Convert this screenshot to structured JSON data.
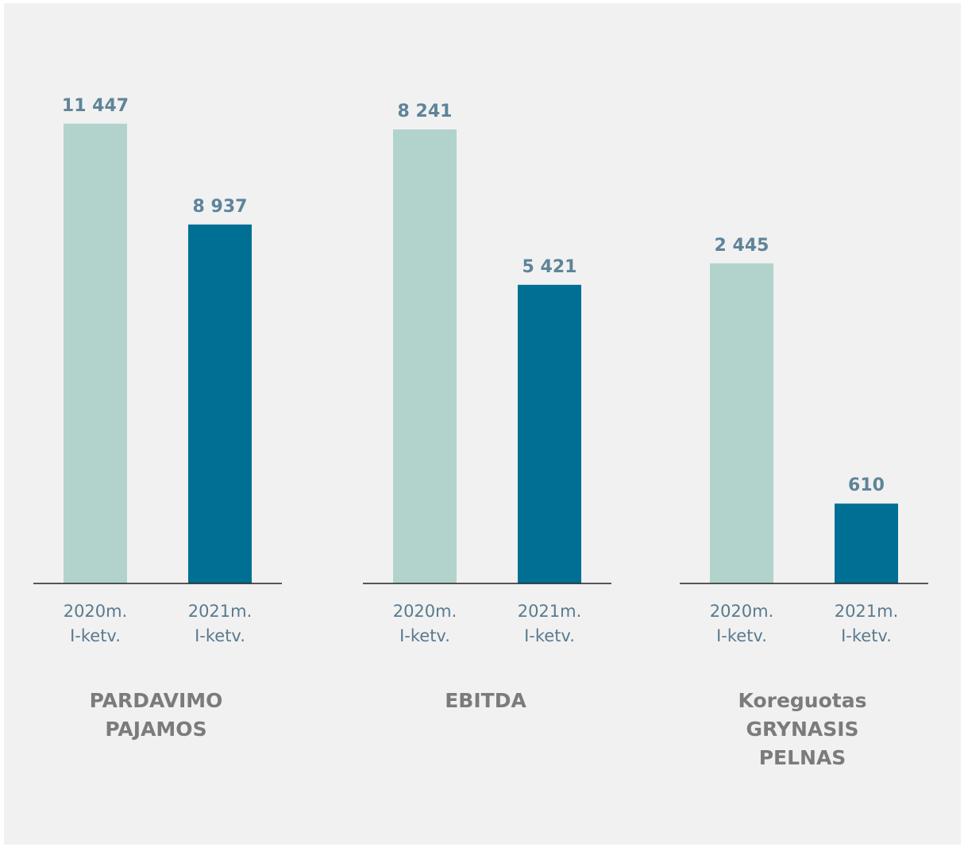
{
  "chart_data": [
    {
      "type": "bar",
      "title": "PARDAVIMO\nPAJAMOS",
      "categories": [
        "2020m.\nI-ketv.",
        "2021m.\nI-ketv."
      ],
      "values": [
        11447,
        8937
      ],
      "value_labels": [
        "11 447",
        "8 937"
      ],
      "colors": [
        "#b2d3cc",
        "#006f94"
      ],
      "ylim": [
        0,
        12550
      ]
    },
    {
      "type": "bar",
      "title": "EBITDA",
      "categories": [
        "2020m.\nI-ketv.",
        "2021m.\nI-ketv."
      ],
      "values": [
        8241,
        5421
      ],
      "value_labels": [
        "8 241",
        "5 421"
      ],
      "colors": [
        "#b2d3cc",
        "#006f94"
      ],
      "ylim": [
        0,
        9150
      ]
    },
    {
      "type": "bar",
      "title": "Koreguotas\nGRYNASIS PELNAS",
      "categories": [
        "2020m.\nI-ketv.",
        "2021m.\nI-ketv."
      ],
      "values": [
        2445,
        610
      ],
      "value_labels": [
        "2 445",
        "610"
      ],
      "colors": [
        "#b2d3cc",
        "#006f94"
      ],
      "ylim": [
        0,
        3850
      ]
    }
  ]
}
